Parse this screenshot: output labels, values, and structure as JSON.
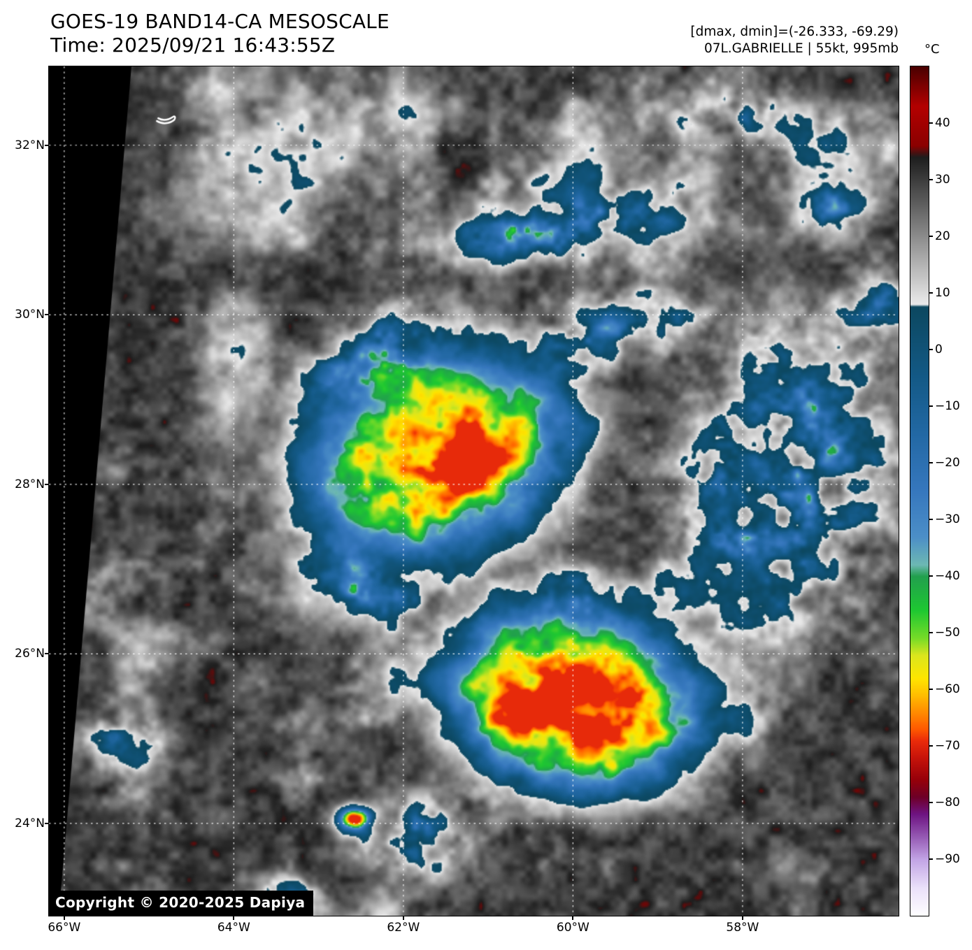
{
  "header": {
    "title": "GOES-19 BAND14-CA MESOSCALE",
    "time_line": "Time: 2025/09/21 16:43:55Z",
    "dmax_dmin": "[dmax, dmin]=(-26.333, -69.29)",
    "storm_info": "07L.GABRIELLE | 55kt, 995mb"
  },
  "copyright": "Copyright © 2020-2025 Dapiya",
  "colorbar": {
    "unit": "°C",
    "range": [
      50,
      -100
    ],
    "ticks": [
      {
        "value": 40,
        "label": "40"
      },
      {
        "value": 30,
        "label": "30"
      },
      {
        "value": 20,
        "label": "20"
      },
      {
        "value": 10,
        "label": "10"
      },
      {
        "value": 0,
        "label": "0"
      },
      {
        "value": -10,
        "label": "−10"
      },
      {
        "value": -20,
        "label": "−20"
      },
      {
        "value": -30,
        "label": "−30"
      },
      {
        "value": -40,
        "label": "−40"
      },
      {
        "value": -50,
        "label": "−50"
      },
      {
        "value": -60,
        "label": "−60"
      },
      {
        "value": -70,
        "label": "−70"
      },
      {
        "value": -80,
        "label": "−80"
      },
      {
        "value": -90,
        "label": "−90"
      }
    ]
  },
  "axes": {
    "lat_ticks": [
      {
        "value": 32,
        "label": "32°N"
      },
      {
        "value": 30,
        "label": "30°N"
      },
      {
        "value": 28,
        "label": "28°N"
      },
      {
        "value": 26,
        "label": "26°N"
      },
      {
        "value": 24,
        "label": "24°N"
      }
    ],
    "lon_ticks": [
      {
        "value": 66,
        "label": "66°W"
      },
      {
        "value": 64,
        "label": "64°W"
      },
      {
        "value": 62,
        "label": "62°W"
      },
      {
        "value": 60,
        "label": "60°W"
      },
      {
        "value": 58,
        "label": "58°W"
      }
    ]
  },
  "chart_data": {
    "type": "heatmap",
    "satellite": "GOES-19",
    "band": "BAND14-CA",
    "sector": "MESOSCALE",
    "time_utc": "2025/09/21 16:43:55Z",
    "storm": {
      "designation": "07L",
      "name": "GABRIELLE",
      "intensity_kt": 55,
      "min_pressure_mb": 995
    },
    "dmax_c": -26.333,
    "dmin_c": -69.29,
    "units": "°C brightness temperature",
    "lon_range_w": [
      66.18,
      56.16
    ],
    "lat_range_n": [
      32.93,
      22.91
    ],
    "grid_lines": {
      "style": "dotted-white",
      "lon_w": [
        66,
        64,
        62,
        60,
        58
      ],
      "lat_n": [
        32,
        30,
        28,
        26,
        24
      ]
    },
    "scan_edge": "black wedge along left edge of mesoscale sector",
    "landmarks": [
      {
        "name": "Bermuda",
        "lon_w": 64.8,
        "lat_n": 32.31
      }
    ],
    "colormap": [
      {
        "t": 50,
        "c": "#4a0000"
      },
      {
        "t": 43,
        "c": "#b40000"
      },
      {
        "t": 36,
        "c": "#8b0000"
      },
      {
        "t": 34,
        "c": "#1e1e1e"
      },
      {
        "t": 8,
        "c": "#ebebeb"
      },
      {
        "t": 7.6,
        "c": "#0c4860"
      },
      {
        "t": -5,
        "c": "#145a87"
      },
      {
        "t": -15,
        "c": "#2369a5"
      },
      {
        "t": -25,
        "c": "#3778be"
      },
      {
        "t": -33,
        "c": "#4c8fc8"
      },
      {
        "t": -38,
        "c": "#6eb9b4"
      },
      {
        "t": -40,
        "c": "#22a04e"
      },
      {
        "t": -46,
        "c": "#1ec832"
      },
      {
        "t": -51,
        "c": "#78dc28"
      },
      {
        "t": -54,
        "c": "#dce61e"
      },
      {
        "t": -58,
        "c": "#ffe600"
      },
      {
        "t": -61,
        "c": "#ffbe00"
      },
      {
        "t": -64,
        "c": "#ff8c00"
      },
      {
        "t": -67,
        "c": "#ff5a00"
      },
      {
        "t": -69,
        "c": "#eb2d0a"
      },
      {
        "t": -72,
        "c": "#c8140a"
      },
      {
        "t": -76,
        "c": "#96000a"
      },
      {
        "t": -79,
        "c": "#6e0028"
      },
      {
        "t": -82,
        "c": "#6e1482"
      },
      {
        "t": -86,
        "c": "#965ab4"
      },
      {
        "t": -90,
        "c": "#c3a5e6"
      },
      {
        "t": -95,
        "c": "#ebe1fa"
      },
      {
        "t": -100,
        "c": "#ffffff"
      }
    ],
    "features": [
      {
        "name": "gabrielle-cdo",
        "lon_w": 61.65,
        "lat_n": 28.35,
        "rx": 1.9,
        "ry": 1.45,
        "rot": -15,
        "amp": 88,
        "profile": "flat",
        "mod": "smooth"
      },
      {
        "name": "gabrielle-inner-core",
        "lon_w": 61.27,
        "lat_n": 28.31,
        "rx": 0.75,
        "ry": 0.5,
        "rot": -20,
        "amp": 18,
        "profile": "flat",
        "mod": "smooth"
      },
      {
        "name": "gabrielle-west-cell",
        "lon_w": 61.9,
        "lat_n": 28.25,
        "rx": 0.45,
        "ry": 0.3,
        "rot": 0,
        "amp": 10,
        "profile": "gauss",
        "mod": "smooth"
      },
      {
        "name": "southern-convective-burst",
        "lon_w": 59.95,
        "lat_n": 25.45,
        "rx": 1.8,
        "ry": 1.3,
        "rot": 10,
        "amp": 90,
        "profile": "flat",
        "mod": "smooth"
      },
      {
        "name": "southern-burst-core",
        "lon_w": 59.75,
        "lat_n": 25.45,
        "rx": 0.85,
        "ry": 0.6,
        "rot": 20,
        "amp": 18,
        "profile": "flat",
        "mod": "smooth"
      },
      {
        "name": "southern-burst-west-cell",
        "lon_w": 60.6,
        "lat_n": 25.2,
        "rx": 0.4,
        "ry": 0.3,
        "rot": 0,
        "amp": 14,
        "profile": "gauss",
        "mod": "smooth"
      },
      {
        "name": "east-outflow-shield",
        "lon_w": 57.5,
        "lat_n": 28.1,
        "rx": 1.55,
        "ry": 2.2,
        "rot": 10,
        "amp": 64,
        "profile": "gauss",
        "mod": "patchy"
      },
      {
        "name": "north-outflow-band",
        "lon_w": 60.2,
        "lat_n": 31.05,
        "rx": 2.0,
        "ry": 0.55,
        "rot": -7,
        "amp": 56,
        "profile": "gauss",
        "mod": "patchy"
      },
      {
        "name": "northeast-connector-band",
        "lon_w": 59.5,
        "lat_n": 29.85,
        "rx": 1.3,
        "ry": 0.5,
        "rot": -12,
        "amp": 56,
        "profile": "gauss",
        "mod": "patchy"
      },
      {
        "name": "south-spiral-band",
        "lon_w": 62.45,
        "lat_n": 26.8,
        "rx": 1.1,
        "ry": 0.42,
        "rot": 25,
        "amp": 52,
        "profile": "gauss",
        "mod": "patchy"
      },
      {
        "name": "cdo-north-fringe",
        "lon_w": 62.3,
        "lat_n": 29.6,
        "rx": 1.2,
        "ry": 0.5,
        "rot": -25,
        "amp": 56,
        "profile": "gauss",
        "mod": "patchy"
      },
      {
        "name": "inter-storm-band",
        "lon_w": 60.15,
        "lat_n": 26.7,
        "rx": 1.0,
        "ry": 0.5,
        "rot": 0,
        "amp": 32,
        "profile": "gauss",
        "mod": "patchy"
      },
      {
        "name": "south-central-cells",
        "lon_w": 61.8,
        "lat_n": 23.8,
        "rx": 0.85,
        "ry": 0.6,
        "rot": 0,
        "amp": 62,
        "profile": "gauss",
        "mod": "patchy"
      },
      {
        "name": "south-central-hot-tower",
        "lon_w": 62.6,
        "lat_n": 24.05,
        "rx": 0.28,
        "ry": 0.22,
        "rot": 0,
        "amp": 82,
        "profile": "gauss",
        "mod": "smooth"
      },
      {
        "name": "southwest-shallow-cells",
        "lon_w": 65.3,
        "lat_n": 24.95,
        "rx": 0.8,
        "ry": 0.5,
        "rot": 10,
        "amp": 36,
        "profile": "gauss",
        "mod": "patchy"
      },
      {
        "name": "southwest-corner-cells",
        "lon_w": 63.45,
        "lat_n": 23.1,
        "rx": 0.6,
        "ry": 0.4,
        "rot": 0,
        "amp": 46,
        "profile": "gauss",
        "mod": "patchy"
      },
      {
        "name": "northeast-cirrus-band",
        "lon_w": 58.0,
        "lat_n": 32.4,
        "rx": 1.9,
        "ry": 0.55,
        "rot": 5,
        "amp": 32,
        "profile": "gauss",
        "mod": "patchy"
      },
      {
        "name": "northeast-cells",
        "lon_w": 57.0,
        "lat_n": 31.3,
        "rx": 0.55,
        "ry": 0.4,
        "rot": 0,
        "amp": 48,
        "profile": "gauss",
        "mod": "patchy"
      },
      {
        "name": "northwest-cloud-band",
        "lon_w": 63.6,
        "lat_n": 31.6,
        "rx": 1.6,
        "ry": 0.85,
        "rot": -20,
        "amp": 18,
        "profile": "gauss",
        "mod": "smooth"
      },
      {
        "name": "west-cloud-band",
        "lon_w": 64.05,
        "lat_n": 29.1,
        "rx": 0.6,
        "ry": 1.1,
        "rot": 5,
        "amp": 17,
        "profile": "gauss",
        "mod": "smooth"
      },
      {
        "name": "southwest-cloud-band",
        "lon_w": 62.9,
        "lat_n": 26.6,
        "rx": 1.1,
        "ry": 0.5,
        "rot": 20,
        "amp": 15,
        "profile": "gauss",
        "mod": "smooth"
      },
      {
        "name": "east-edge-cells",
        "lon_w": 56.4,
        "lat_n": 30.15,
        "rx": 0.5,
        "ry": 0.6,
        "rot": 0,
        "amp": 38,
        "profile": "gauss",
        "mod": "patchy"
      }
    ]
  }
}
